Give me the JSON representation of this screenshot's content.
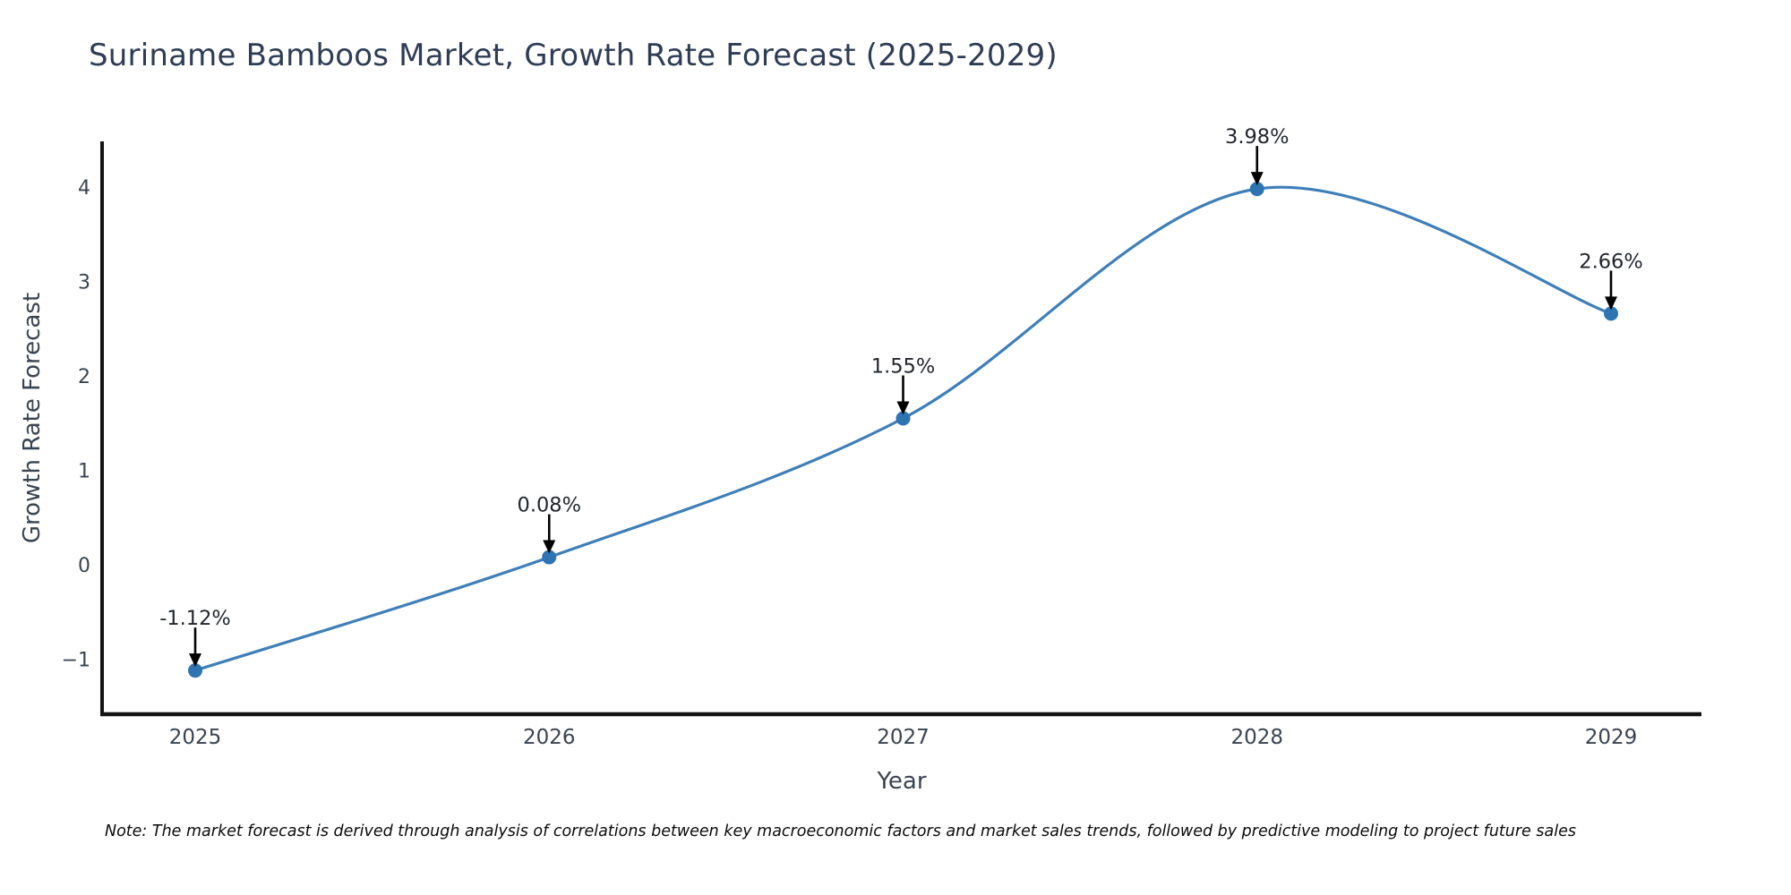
{
  "title": "Suriname Bamboos Market, Growth Rate Forecast (2025-2029)",
  "note": "Note: The market forecast is derived through analysis of correlations between key macroeconomic factors and market sales trends, followed by predictive modeling to project future sales",
  "chart_data": {
    "type": "line",
    "title": "Suriname Bamboos Market, Growth Rate Forecast (2025-2029)",
    "xlabel": "Year",
    "ylabel": "Growth Rate Forecast",
    "categories": [
      "2025",
      "2026",
      "2027",
      "2028",
      "2029"
    ],
    "values": [
      -1.12,
      0.08,
      1.55,
      3.98,
      2.66
    ],
    "point_labels": [
      "-1.12%",
      "0.08%",
      "1.55%",
      "3.98%",
      "2.66%"
    ],
    "yticks": [
      4,
      3,
      2,
      1,
      0,
      -1
    ],
    "ylim": [
      -1.6,
      4.48
    ],
    "grid": false,
    "legend_position": "none",
    "annotation_style": "black-down-arrow",
    "colors": {
      "line": "#3e7fb9",
      "marker": "#2e73b2",
      "axis": "#141414",
      "tick_text": "#3a4450",
      "annotation_text": "#22262c",
      "title_text": "#2e3c55"
    }
  }
}
